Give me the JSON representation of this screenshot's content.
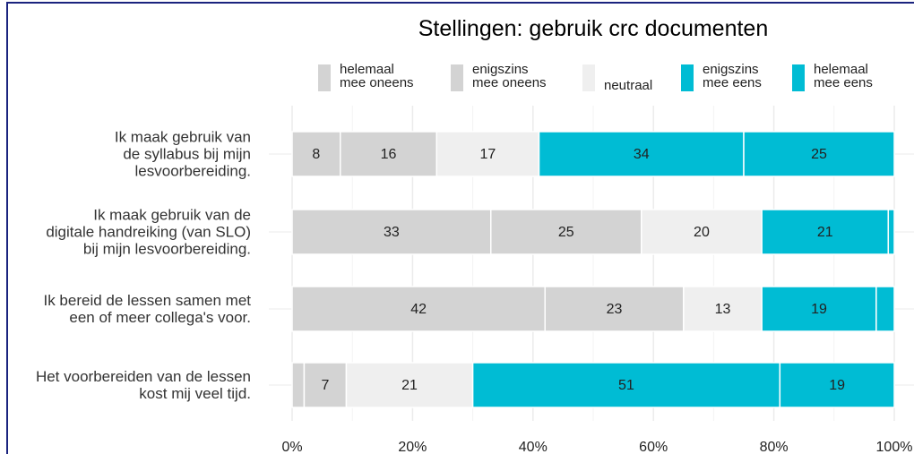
{
  "chart_data": {
    "type": "stacked_bar_horizontal",
    "title": "Stellingen: gebruik crc documenten",
    "categories": [
      "Ik maak gebruik van\nde syllabus bij mijn\nlesvoorbereiding.",
      "Ik maak gebruik van de\ndigitale handreiking (van SLO)\nbij mijn lesvoorbereiding.",
      "Ik bereid de lessen samen met\neen of meer collega's voor.",
      "Het voorbereiden van de lessen\nkost mij veel tijd."
    ],
    "series": [
      {
        "name": "helemaal\nmee oneens",
        "color": "#d3d3d3",
        "values": [
          8,
          33,
          42,
          2
        ]
      },
      {
        "name": "enigszins\nmee oneens",
        "color": "#d3d3d3",
        "values": [
          16,
          25,
          23,
          7
        ]
      },
      {
        "name": "neutraal",
        "color": "#efefef",
        "values": [
          17,
          20,
          13,
          21
        ]
      },
      {
        "name": "enigszins\nmee eens",
        "color": "#00bcd4",
        "values": [
          34,
          21,
          19,
          51
        ]
      },
      {
        "name": "helemaal\nmee eens",
        "color": "#00bcd4",
        "values": [
          25,
          1,
          3,
          19
        ]
      }
    ],
    "xlim": [
      0,
      100
    ],
    "xticks": [
      {
        "value": 0,
        "label": "0%"
      },
      {
        "value": 20,
        "label": "20%"
      },
      {
        "value": 40,
        "label": "40%"
      },
      {
        "value": 60,
        "label": "60%"
      },
      {
        "value": 80,
        "label": "80%"
      },
      {
        "value": 100,
        "label": "100%"
      }
    ],
    "grid": true
  }
}
